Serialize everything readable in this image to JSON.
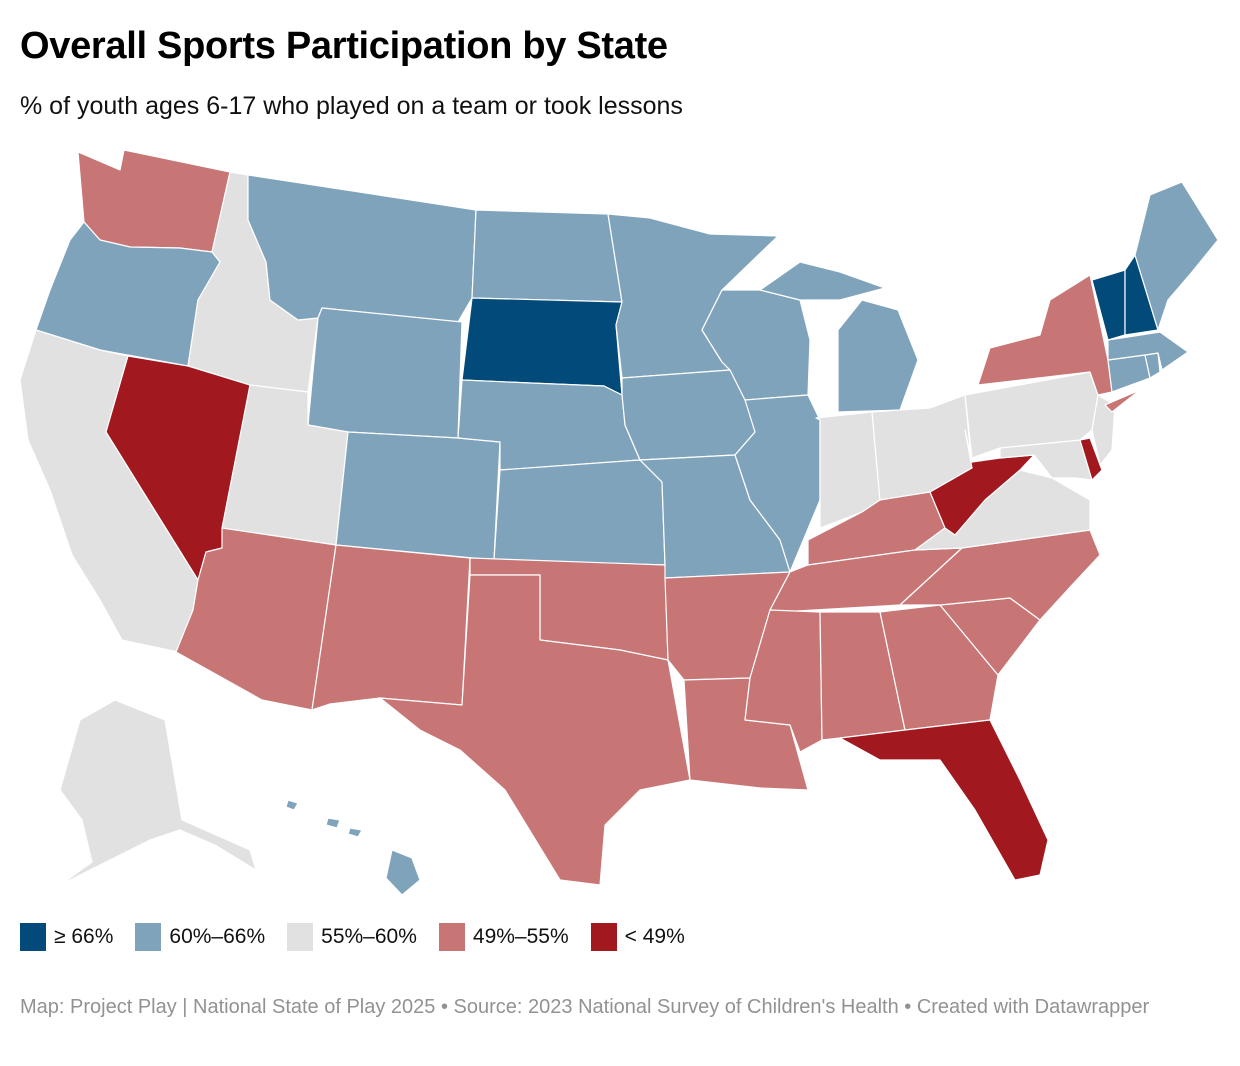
{
  "header": {
    "title": "Overall Sports Participation by State",
    "subtitle": "% of youth ages 6-17 who played on a team or took lessons"
  },
  "colors": {
    "bin1": "#024a79",
    "bin2": "#80a3bc",
    "bin3": "#e1e1e1",
    "bin4": "#c87575",
    "bin5": "#a1191f"
  },
  "legend": [
    {
      "label": "≥ 66%",
      "bin": "bin1"
    },
    {
      "label": "60%–66%",
      "bin": "bin2"
    },
    {
      "label": "55%–60%",
      "bin": "bin3"
    },
    {
      "label": "49%–55%",
      "bin": "bin4"
    },
    {
      "label": "< 49%",
      "bin": "bin5"
    }
  ],
  "states": [
    {
      "code": "WA",
      "bin": "bin4"
    },
    {
      "code": "OR",
      "bin": "bin2"
    },
    {
      "code": "CA",
      "bin": "bin3"
    },
    {
      "code": "ID",
      "bin": "bin3"
    },
    {
      "code": "NV",
      "bin": "bin5"
    },
    {
      "code": "MT",
      "bin": "bin2"
    },
    {
      "code": "WY",
      "bin": "bin2"
    },
    {
      "code": "UT",
      "bin": "bin3"
    },
    {
      "code": "AZ",
      "bin": "bin4"
    },
    {
      "code": "CO",
      "bin": "bin2"
    },
    {
      "code": "NM",
      "bin": "bin4"
    },
    {
      "code": "ND",
      "bin": "bin2"
    },
    {
      "code": "SD",
      "bin": "bin1"
    },
    {
      "code": "NE",
      "bin": "bin2"
    },
    {
      "code": "KS",
      "bin": "bin2"
    },
    {
      "code": "OK",
      "bin": "bin4"
    },
    {
      "code": "TX",
      "bin": "bin4"
    },
    {
      "code": "MN",
      "bin": "bin2"
    },
    {
      "code": "IA",
      "bin": "bin2"
    },
    {
      "code": "MO",
      "bin": "bin2"
    },
    {
      "code": "AR",
      "bin": "bin4"
    },
    {
      "code": "LA",
      "bin": "bin4"
    },
    {
      "code": "WI",
      "bin": "bin2"
    },
    {
      "code": "IL",
      "bin": "bin2"
    },
    {
      "code": "MI",
      "bin": "bin2"
    },
    {
      "code": "IN",
      "bin": "bin3"
    },
    {
      "code": "OH",
      "bin": "bin3"
    },
    {
      "code": "KY",
      "bin": "bin4"
    },
    {
      "code": "TN",
      "bin": "bin4"
    },
    {
      "code": "MS",
      "bin": "bin4"
    },
    {
      "code": "AL",
      "bin": "bin4"
    },
    {
      "code": "GA",
      "bin": "bin4"
    },
    {
      "code": "FL",
      "bin": "bin5"
    },
    {
      "code": "SC",
      "bin": "bin4"
    },
    {
      "code": "NC",
      "bin": "bin4"
    },
    {
      "code": "VA",
      "bin": "bin3"
    },
    {
      "code": "WV",
      "bin": "bin5"
    },
    {
      "code": "MD",
      "bin": "bin3"
    },
    {
      "code": "DE",
      "bin": "bin5"
    },
    {
      "code": "NJ",
      "bin": "bin3"
    },
    {
      "code": "PA",
      "bin": "bin3"
    },
    {
      "code": "NY",
      "bin": "bin4"
    },
    {
      "code": "CT",
      "bin": "bin2"
    },
    {
      "code": "RI",
      "bin": "bin2"
    },
    {
      "code": "MA",
      "bin": "bin2"
    },
    {
      "code": "VT",
      "bin": "bin1"
    },
    {
      "code": "NH",
      "bin": "bin1"
    },
    {
      "code": "ME",
      "bin": "bin2"
    },
    {
      "code": "AK",
      "bin": "bin3"
    },
    {
      "code": "HI",
      "bin": "bin2"
    }
  ],
  "footer": {
    "credit": "Map: Project Play | National State of Play 2025 • Source: 2023 National Survey of Children's Health • Created with Datawrapper"
  }
}
